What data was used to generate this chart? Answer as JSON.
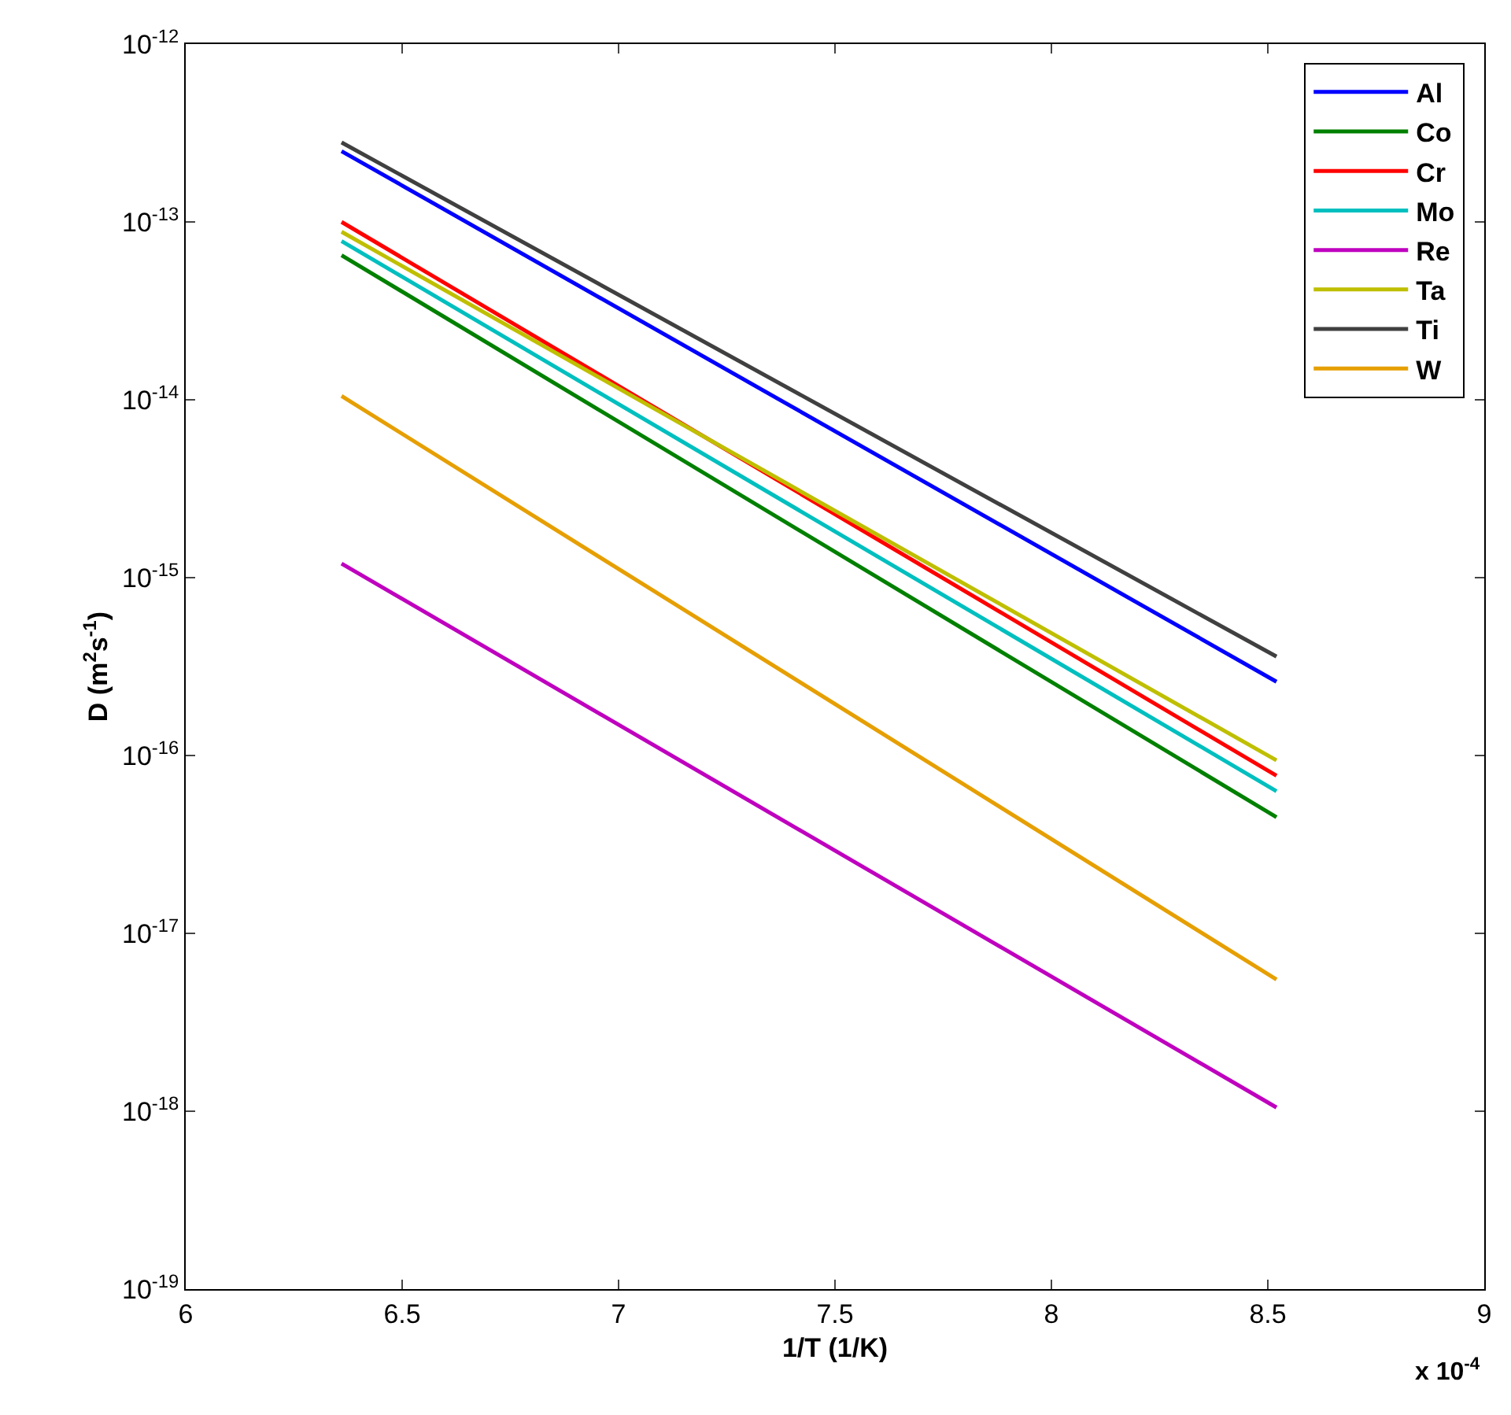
{
  "chart_data": {
    "type": "line",
    "xlabel": "1/T (1/K)",
    "ylabel": "D (m$^{2}$s$^{-1}$)",
    "annotations": [
      "x 10$^{-4}$"
    ],
    "x": [
      6.36,
      8.52
    ],
    "series": [
      {
        "name": "Al",
        "color": "#0000ff",
        "values": [
          2.5e-13,
          2.6e-16
        ]
      },
      {
        "name": "Co",
        "color": "#008000",
        "values": [
          6.5e-14,
          4.5e-17
        ]
      },
      {
        "name": "Cr",
        "color": "#ff0000",
        "values": [
          1e-13,
          7.7e-17
        ]
      },
      {
        "name": "Mo",
        "color": "#00bfbf",
        "values": [
          7.8e-14,
          6.3e-17
        ]
      },
      {
        "name": "Re",
        "color": "#bf00bf",
        "values": [
          1.2e-15,
          1.05e-18
        ]
      },
      {
        "name": "Ta",
        "color": "#bfbf00",
        "values": [
          8.8e-14,
          9.4e-17
        ]
      },
      {
        "name": "Ti",
        "color": "#404040",
        "values": [
          2.8e-13,
          3.6e-16
        ]
      },
      {
        "name": "W",
        "color": "#e69f00",
        "values": [
          1.05e-14,
          5.5e-18
        ]
      }
    ],
    "xlim": [
      6,
      9
    ],
    "xticks": [
      6,
      6.5,
      7,
      7.5,
      8,
      8.5,
      9
    ],
    "ylim": [
      1e-19,
      1e-12
    ],
    "log": true,
    "yticks": [
      {
        "value": 1e-19,
        "label": "10$^{-19}$"
      },
      {
        "value": 1e-18,
        "label": "10$^{-18}$"
      },
      {
        "value": 1e-17,
        "label": "10$^{-17}$"
      },
      {
        "value": 1e-16,
        "label": "10$^{-16}$"
      },
      {
        "value": 1e-15,
        "label": "10$^{-15}$"
      },
      {
        "value": 1e-14,
        "label": "10$^{-14}$"
      },
      {
        "value": 1e-13,
        "label": "10$^{-13}$"
      },
      {
        "value": 1e-12,
        "label": "10$^{-12}$"
      }
    ],
    "legend": "top right",
    "line_style": "solid",
    "marker": "none"
  }
}
